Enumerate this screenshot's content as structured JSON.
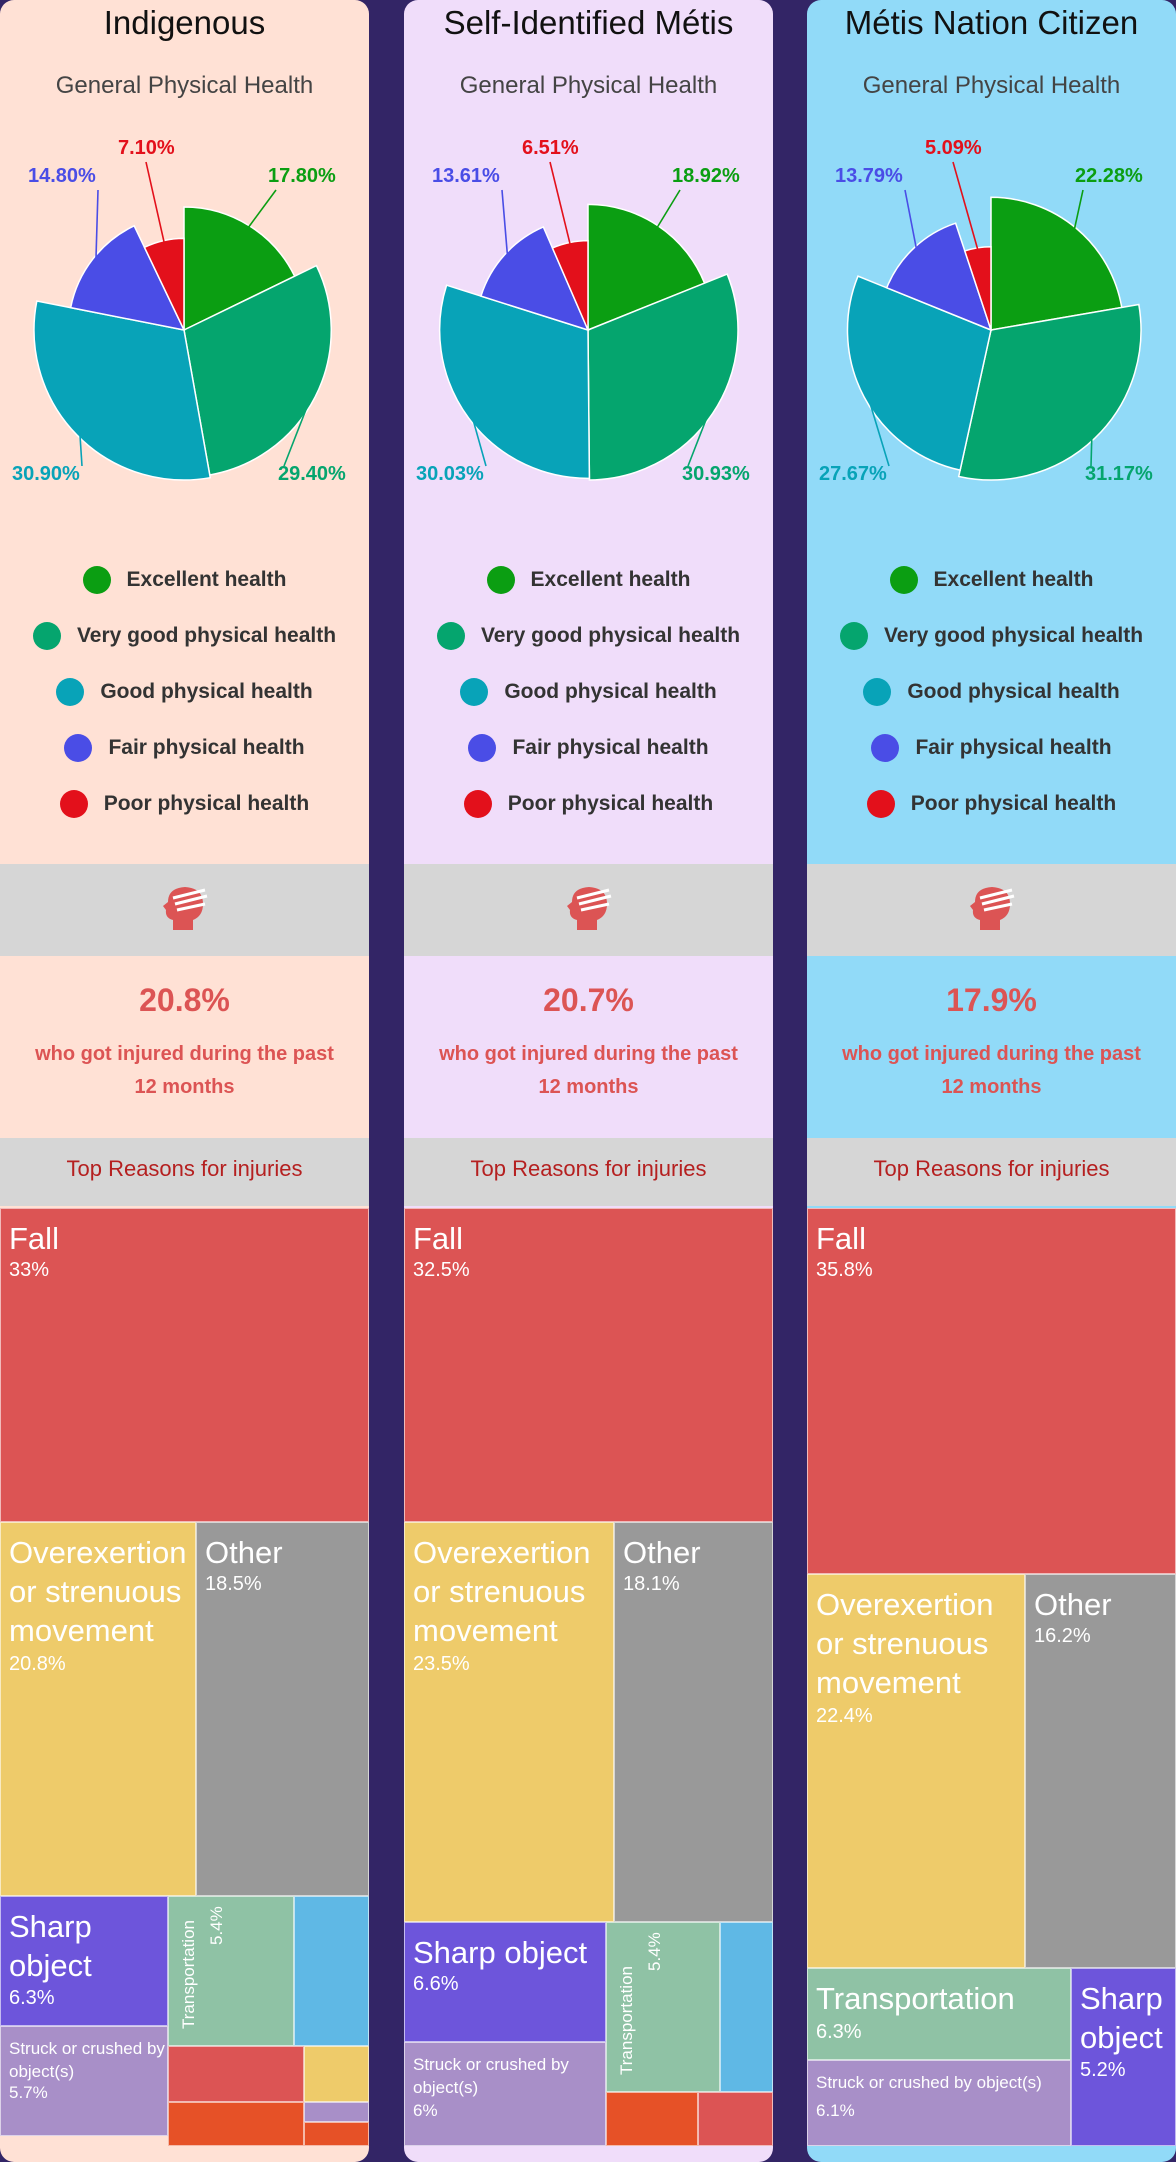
{
  "legend": [
    {
      "label": "Excellent health",
      "color": "#0b9e12"
    },
    {
      "label": "Very good physical health",
      "color": "#05a56e"
    },
    {
      "label": "Good physical health",
      "color": "#08a3b8"
    },
    {
      "label": "Fair physical health",
      "color": "#4a4de6"
    },
    {
      "label": "Poor physical health",
      "color": "#e3101b"
    }
  ],
  "reasons_title": "Top Reasons for injuries",
  "injury_caption": "who got injured during the past 12 months",
  "panels": [
    {
      "title": "Indigenous",
      "background": "#ffe1d5",
      "injured_pct": "20.8%",
      "health_labels": [
        "17.80%",
        "29.40%",
        "30.90%",
        "14.80%",
        "7.10%"
      ],
      "treemap_labels": {
        "fall": "Fall",
        "fall_value": "33%",
        "over": "Overexertion or strenuous movement",
        "over_value": "20.8%",
        "other": "Other",
        "other_value": "18.5%",
        "sharp": "Sharp object",
        "sharp_value": "6.3%",
        "struck": "Struck or crushed by object(s)",
        "struck_value": "5.7%",
        "trans": "Transportation",
        "trans_value": "5.4%"
      }
    },
    {
      "title": "Self-Identified Métis",
      "background": "#f0ddfa",
      "injured_pct": "20.7%",
      "health_labels": [
        "18.92%",
        "30.93%",
        "30.03%",
        "13.61%",
        "6.51%"
      ],
      "treemap_labels": {
        "fall": "Fall",
        "fall_value": "32.5%",
        "over": "Overexertion or strenuous movement",
        "over_value": "23.5%",
        "other": "Other",
        "other_value": "18.1%",
        "sharp": "Sharp object",
        "sharp_value": "6.6%",
        "struck": "Struck or crushed by object(s)",
        "struck_value": "6%",
        "trans": "Transportation",
        "trans_value": "5.4%"
      }
    },
    {
      "title": "Métis Nation Citizen",
      "background": "#91daf8",
      "injured_pct": "17.9%",
      "health_labels": [
        "22.28%",
        "31.17%",
        "27.67%",
        "13.79%",
        "5.09%"
      ],
      "treemap_labels": {
        "fall": "Fall",
        "fall_value": "35.8%",
        "over": "Overexertion or strenuous movement",
        "over_value": "22.4%",
        "other": "Other",
        "other_value": "16.2%",
        "trans": "Transportation",
        "trans_value": "6.3%",
        "sharp": "Sharp object",
        "sharp_value": "5.2%",
        "struck": "Struck or crushed by object(s)",
        "struck_value": "6.1%"
      }
    }
  ],
  "chart_data": [
    {
      "type": "pie",
      "title": "General Physical Health",
      "categories": [
        "Excellent health",
        "Very good physical health",
        "Good physical health",
        "Fair physical health",
        "Poor physical health"
      ],
      "values": [
        17.8,
        29.4,
        30.9,
        14.8,
        7.1
      ],
      "colors": [
        "#0b9e12",
        "#05a56e",
        "#08a3b8",
        "#4a4de6",
        "#e3101b"
      ]
    },
    {
      "type": "pie",
      "title": "General Physical Health",
      "categories": [
        "Excellent health",
        "Very good physical health",
        "Good physical health",
        "Fair physical health",
        "Poor physical health"
      ],
      "values": [
        18.92,
        30.93,
        30.03,
        13.61,
        6.51
      ],
      "colors": [
        "#0b9e12",
        "#05a56e",
        "#08a3b8",
        "#4a4de6",
        "#e3101b"
      ]
    },
    {
      "type": "pie",
      "title": "General Physical Health",
      "categories": [
        "Excellent health",
        "Very good physical health",
        "Good physical health",
        "Fair physical health",
        "Poor physical health"
      ],
      "values": [
        22.28,
        31.17,
        27.67,
        13.79,
        5.09
      ],
      "colors": [
        "#0b9e12",
        "#05a56e",
        "#08a3b8",
        "#4a4de6",
        "#e3101b"
      ]
    }
  ],
  "treemap_colors": {
    "fall": "#dc5454",
    "over": "#eecb6a",
    "other": "#999999",
    "sharp": "#6d55db",
    "struck": "#a88fc8",
    "trans": "#8fc2a5",
    "extra_blue": "#5fb8e5",
    "extra_orange": "#e65127"
  }
}
